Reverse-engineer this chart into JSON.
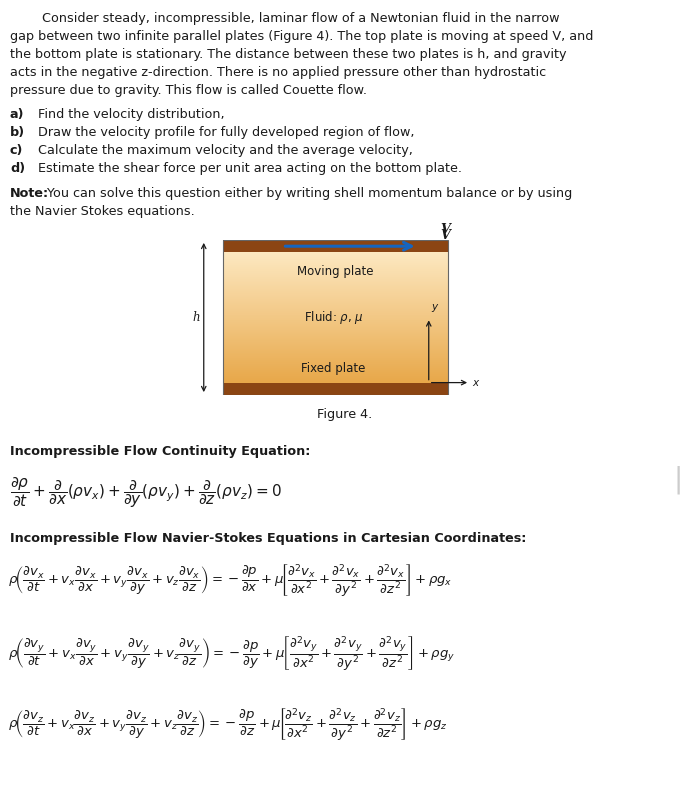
{
  "bg_color": "#ffffff",
  "page_width": 6.9,
  "page_height": 7.9,
  "paragraph_line1": "        Consider steady, incompressible, laminar flow of a Newtonian fluid in the narrow",
  "paragraph_line2": "gap between two infinite parallel plates (Figure 4). The top plate is moving at speed V, and",
  "paragraph_line3": "the bottom plate is stationary. The distance between these two plates is h, and gravity",
  "paragraph_line4": "acts in the negative z-direction. There is no applied pressure other than hydrostatic",
  "paragraph_line5": "pressure due to gravity. This flow is called Couette flow.",
  "items": [
    [
      "a)",
      "Find the velocity distribution,"
    ],
    [
      "b)",
      "Draw the velocity profile for fully developed region of flow,"
    ],
    [
      "c)",
      "Calculate the maximum velocity and the average velocity,"
    ],
    [
      "d)",
      "Estimate the shear force per unit area acting on the bottom plate."
    ]
  ],
  "note_bold": "Note:",
  "note_rest": " You can solve this question either by writing shell momentum balance or by using",
  "note_line2": "the Navier Stokes equations.",
  "figure_caption": "Figure 4.",
  "moving_label": "Moving plate",
  "fluid_label": "Fluid: ",
  "fixed_label": "Fixed plate",
  "h_label": "h",
  "V_label": "V",
  "section1": "Incompressible Flow Continuity Equation:",
  "section2": "Incompressible Flow Navier-Stokes Equations in Cartesian Coordinates:",
  "plate_fill": "#f5c98a",
  "plate_fill_light": "#fde8c0",
  "plate_dark": "#8b4513",
  "arrow_blue": "#1565c0",
  "text_color": "#1a1a1a",
  "fs_body": 9.2,
  "fs_bold": 9.2,
  "fs_eq": 8.8,
  "fs_small": 8.5
}
